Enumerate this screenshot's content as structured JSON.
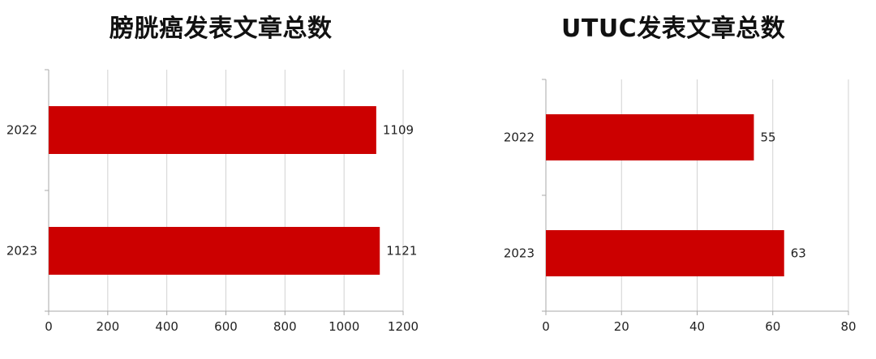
{
  "chart_data": [
    {
      "type": "bar",
      "orientation": "horizontal",
      "title": "膀胱癌发表文章总数",
      "categories": [
        "2022",
        "2023"
      ],
      "values": [
        1109,
        1121
      ],
      "data_labels": [
        "1109",
        "1121"
      ],
      "xlim": [
        0,
        1200
      ],
      "xticks": [
        "0",
        "200",
        "400",
        "600",
        "800",
        "1000",
        "1200"
      ],
      "xlabel": "",
      "ylabel": "",
      "grid": true,
      "bar_color": "#cc0000"
    },
    {
      "type": "bar",
      "orientation": "horizontal",
      "title": "UTUC发表文章总数",
      "categories": [
        "2022",
        "2023"
      ],
      "values": [
        55,
        63
      ],
      "data_labels": [
        "55",
        "63"
      ],
      "xlim": [
        0,
        80
      ],
      "xticks": [
        "0",
        "20",
        "40",
        "60",
        "80"
      ],
      "xlabel": "",
      "ylabel": "",
      "grid": true,
      "bar_color": "#cc0000"
    }
  ]
}
